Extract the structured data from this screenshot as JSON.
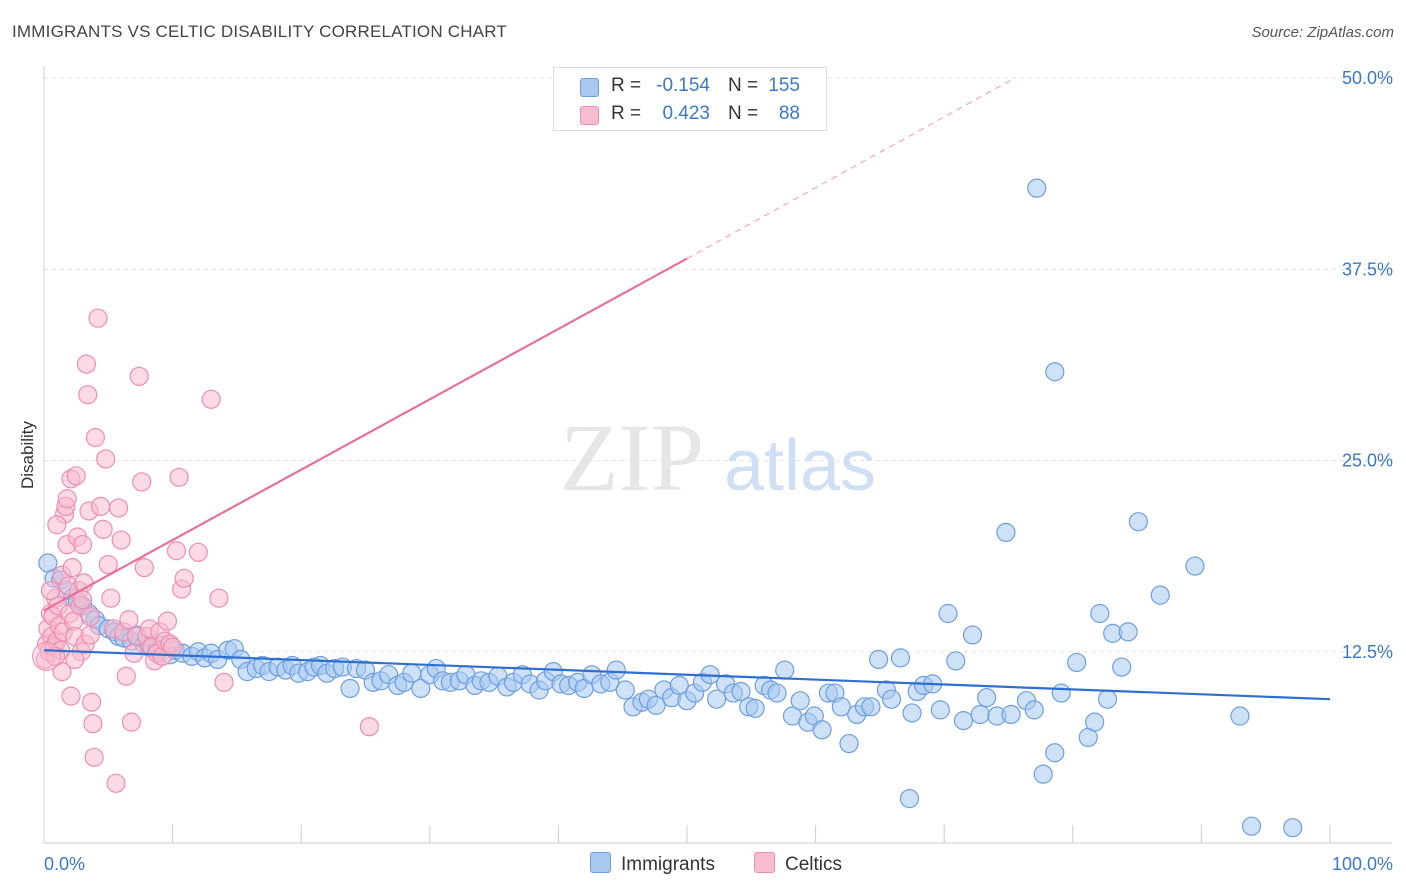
{
  "title": "IMMIGRANTS VS CELTIC DISABILITY CORRELATION CHART",
  "source": "Source: ZipAtlas.com",
  "watermark": {
    "zip": "ZIP",
    "atlas": "atlas"
  },
  "legend": {
    "rows": [
      {
        "r_label": "R =",
        "r_value": "-0.154",
        "n_label": "N =",
        "n_value": "155",
        "color": "#a8c8f0",
        "border": "#6d9fe0"
      },
      {
        "r_label": "R =",
        "r_value": "0.423",
        "n_label": "N =",
        "n_value": "88",
        "color": "#f8bcd0",
        "border": "#ee8eae"
      }
    ]
  },
  "bottom_legend": [
    {
      "label": "Immigrants",
      "color": "#a8c8f0",
      "border": "#6d9fe0"
    },
    {
      "label": "Celtics",
      "color": "#f8bcd0",
      "border": "#ee8eae"
    }
  ],
  "chart_data": {
    "type": "scatter",
    "title": "IMMIGRANTS VS CELTIC DISABILITY CORRELATION CHART",
    "xlabel": "",
    "ylabel": "Disability",
    "xlim": [
      0,
      100
    ],
    "ylim": [
      0,
      50
    ],
    "x_tick_labels": [
      "0.0%",
      "100.0%"
    ],
    "y_ticks": [
      12.5,
      25.0,
      37.5,
      50.0
    ],
    "y_tick_labels": [
      "12.5%",
      "25.0%",
      "37.5%",
      "50.0%"
    ],
    "grid": true,
    "series": [
      {
        "name": "Immigrants",
        "color": "#6d9fe0",
        "fill": "#a8c8f0",
        "line_color": "#2f6fcf",
        "trend": {
          "x": [
            0,
            100
          ],
          "y": [
            12.6,
            9.4
          ],
          "style": "solid"
        },
        "points": [
          [
            0.3,
            18.3
          ],
          [
            0.8,
            17.3
          ],
          [
            1.3,
            17.2
          ],
          [
            1.8,
            16.5
          ],
          [
            2.2,
            16.0
          ],
          [
            2.6,
            15.8
          ],
          [
            3.0,
            15.5
          ],
          [
            3.5,
            15.0
          ],
          [
            4.0,
            14.6
          ],
          [
            4.3,
            14.2
          ],
          [
            5.0,
            14.0
          ],
          [
            5.5,
            13.8
          ],
          [
            5.8,
            13.5
          ],
          [
            6.2,
            13.4
          ],
          [
            6.8,
            13.2
          ],
          [
            7.2,
            13.6
          ],
          [
            7.8,
            13.0
          ],
          [
            8.2,
            12.8
          ],
          [
            8.8,
            12.6
          ],
          [
            9.2,
            12.9
          ],
          [
            9.8,
            12.3
          ],
          [
            10.2,
            12.6
          ],
          [
            10.8,
            12.4
          ],
          [
            11.5,
            12.2
          ],
          [
            12.0,
            12.5
          ],
          [
            12.5,
            12.1
          ],
          [
            13.0,
            12.4
          ],
          [
            13.5,
            12.0
          ],
          [
            14.3,
            12.6
          ],
          [
            14.8,
            12.7
          ],
          [
            15.3,
            12.0
          ],
          [
            15.8,
            11.2
          ],
          [
            16.5,
            11.4
          ],
          [
            17.0,
            11.6
          ],
          [
            17.5,
            11.2
          ],
          [
            18.2,
            11.5
          ],
          [
            18.8,
            11.3
          ],
          [
            19.3,
            11.6
          ],
          [
            19.8,
            11.1
          ],
          [
            20.5,
            11.2
          ],
          [
            21.0,
            11.5
          ],
          [
            21.5,
            11.6
          ],
          [
            22.0,
            11.1
          ],
          [
            22.6,
            11.4
          ],
          [
            23.2,
            11.5
          ],
          [
            23.8,
            10.1
          ],
          [
            24.3,
            11.4
          ],
          [
            25.0,
            11.3
          ],
          [
            25.6,
            10.5
          ],
          [
            26.2,
            10.6
          ],
          [
            26.8,
            11.0
          ],
          [
            27.5,
            10.3
          ],
          [
            28.0,
            10.5
          ],
          [
            28.6,
            11.1
          ],
          [
            29.3,
            10.1
          ],
          [
            30.0,
            11.0
          ],
          [
            30.5,
            11.4
          ],
          [
            31.0,
            10.6
          ],
          [
            31.6,
            10.5
          ],
          [
            32.3,
            10.6
          ],
          [
            32.8,
            11.0
          ],
          [
            33.5,
            10.3
          ],
          [
            34.0,
            10.6
          ],
          [
            34.6,
            10.5
          ],
          [
            35.3,
            10.9
          ],
          [
            36.0,
            10.2
          ],
          [
            36.5,
            10.5
          ],
          [
            37.2,
            11.0
          ],
          [
            37.8,
            10.4
          ],
          [
            38.5,
            10.0
          ],
          [
            39.0,
            10.6
          ],
          [
            39.6,
            11.2
          ],
          [
            40.2,
            10.4
          ],
          [
            40.8,
            10.3
          ],
          [
            41.5,
            10.5
          ],
          [
            42.0,
            10.1
          ],
          [
            42.6,
            11.0
          ],
          [
            43.3,
            10.4
          ],
          [
            44.0,
            10.5
          ],
          [
            44.5,
            11.3
          ],
          [
            45.2,
            10.0
          ],
          [
            45.8,
            8.9
          ],
          [
            46.5,
            9.2
          ],
          [
            47.0,
            9.4
          ],
          [
            47.6,
            9.0
          ],
          [
            48.2,
            10.0
          ],
          [
            48.8,
            9.5
          ],
          [
            49.4,
            10.3
          ],
          [
            50.0,
            9.3
          ],
          [
            50.6,
            9.8
          ],
          [
            51.2,
            10.5
          ],
          [
            51.8,
            11.0
          ],
          [
            52.3,
            9.4
          ],
          [
            53.0,
            10.4
          ],
          [
            53.6,
            9.8
          ],
          [
            54.2,
            9.9
          ],
          [
            54.8,
            8.9
          ],
          [
            55.3,
            8.8
          ],
          [
            56.0,
            10.3
          ],
          [
            56.5,
            10.0
          ],
          [
            57.0,
            9.8
          ],
          [
            57.6,
            11.3
          ],
          [
            58.2,
            8.3
          ],
          [
            58.8,
            9.3
          ],
          [
            59.4,
            7.9
          ],
          [
            59.9,
            8.3
          ],
          [
            60.5,
            7.4
          ],
          [
            61.0,
            9.8
          ],
          [
            61.5,
            9.8
          ],
          [
            62.0,
            8.9
          ],
          [
            62.6,
            6.5
          ],
          [
            63.2,
            8.4
          ],
          [
            63.8,
            8.9
          ],
          [
            64.3,
            8.9
          ],
          [
            64.9,
            12.0
          ],
          [
            65.5,
            10.0
          ],
          [
            65.9,
            9.4
          ],
          [
            66.6,
            12.1
          ],
          [
            67.3,
            2.9
          ],
          [
            67.5,
            8.5
          ],
          [
            67.9,
            9.9
          ],
          [
            68.4,
            10.3
          ],
          [
            69.1,
            10.4
          ],
          [
            69.7,
            8.7
          ],
          [
            70.3,
            15.0
          ],
          [
            70.9,
            11.9
          ],
          [
            71.5,
            8.0
          ],
          [
            72.2,
            13.6
          ],
          [
            72.8,
            8.4
          ],
          [
            73.3,
            9.5
          ],
          [
            74.1,
            8.3
          ],
          [
            74.8,
            20.3
          ],
          [
            75.2,
            8.4
          ],
          [
            76.4,
            9.3
          ],
          [
            77.0,
            8.7
          ],
          [
            77.7,
            4.5
          ],
          [
            78.6,
            5.9
          ],
          [
            79.1,
            9.8
          ],
          [
            80.3,
            11.8
          ],
          [
            81.2,
            6.9
          ],
          [
            81.7,
            7.9
          ],
          [
            82.1,
            15.0
          ],
          [
            82.7,
            9.4
          ],
          [
            83.1,
            13.7
          ],
          [
            83.8,
            11.5
          ],
          [
            84.3,
            13.8
          ],
          [
            85.1,
            21.0
          ],
          [
            86.8,
            16.2
          ],
          [
            89.5,
            18.1
          ],
          [
            93.0,
            8.3
          ],
          [
            93.9,
            1.1
          ],
          [
            97.1,
            1.0
          ],
          [
            77.2,
            42.8
          ],
          [
            78.6,
            30.8
          ],
          [
            0.8,
            12.9
          ]
        ]
      },
      {
        "name": "Celtics",
        "color": "#ee8eae",
        "fill": "#f8bcd0",
        "line_color": "#e8709a",
        "trend": {
          "x": [
            0,
            50
          ],
          "y": [
            15.2,
            38.2
          ],
          "style": "solid"
        },
        "trend_extension": {
          "x": [
            50,
            75.5
          ],
          "y": [
            38.2,
            50.0
          ],
          "style": "dashed"
        },
        "points": [
          [
            0.1,
            12.0
          ],
          [
            0.2,
            13.0
          ],
          [
            0.3,
            14.0
          ],
          [
            0.4,
            12.5
          ],
          [
            0.5,
            15.0
          ],
          [
            0.6,
            13.5
          ],
          [
            0.7,
            14.8
          ],
          [
            0.8,
            12.8
          ],
          [
            0.9,
            16.0
          ],
          [
            1.0,
            13.2
          ],
          [
            1.1,
            15.5
          ],
          [
            1.2,
            14.2
          ],
          [
            1.3,
            12.6
          ],
          [
            1.4,
            17.5
          ],
          [
            1.5,
            13.8
          ],
          [
            1.6,
            21.5
          ],
          [
            1.7,
            22.0
          ],
          [
            1.8,
            19.5
          ],
          [
            1.9,
            16.8
          ],
          [
            2.0,
            15.0
          ],
          [
            2.1,
            23.8
          ],
          [
            2.2,
            18.0
          ],
          [
            2.3,
            14.5
          ],
          [
            2.4,
            13.5
          ],
          [
            2.5,
            24.0
          ],
          [
            2.6,
            20.0
          ],
          [
            2.7,
            16.5
          ],
          [
            2.8,
            15.5
          ],
          [
            2.9,
            12.5
          ],
          [
            3.0,
            19.5
          ],
          [
            3.1,
            17.0
          ],
          [
            3.2,
            13.0
          ],
          [
            3.3,
            31.3
          ],
          [
            3.4,
            29.3
          ],
          [
            3.5,
            21.7
          ],
          [
            3.6,
            14.8
          ],
          [
            3.7,
            9.2
          ],
          [
            3.8,
            7.8
          ],
          [
            3.9,
            5.6
          ],
          [
            4.0,
            26.5
          ],
          [
            4.2,
            34.3
          ],
          [
            4.4,
            22.0
          ],
          [
            4.6,
            20.5
          ],
          [
            4.8,
            25.1
          ],
          [
            5.0,
            18.2
          ],
          [
            5.2,
            16.0
          ],
          [
            5.4,
            14.0
          ],
          [
            5.6,
            3.9
          ],
          [
            5.8,
            21.9
          ],
          [
            6.0,
            19.8
          ],
          [
            6.2,
            13.8
          ],
          [
            6.4,
            10.9
          ],
          [
            6.6,
            14.6
          ],
          [
            6.8,
            7.9
          ],
          [
            7.0,
            12.4
          ],
          [
            7.2,
            13.5
          ],
          [
            7.4,
            30.5
          ],
          [
            7.6,
            23.6
          ],
          [
            7.8,
            18.0
          ],
          [
            8.0,
            13.5
          ],
          [
            8.2,
            14.0
          ],
          [
            8.4,
            12.8
          ],
          [
            8.6,
            11.9
          ],
          [
            8.8,
            12.4
          ],
          [
            9.0,
            13.8
          ],
          [
            9.2,
            12.2
          ],
          [
            9.4,
            13.2
          ],
          [
            9.6,
            14.5
          ],
          [
            9.8,
            13.0
          ],
          [
            10.0,
            12.8
          ],
          [
            10.3,
            19.1
          ],
          [
            10.5,
            23.9
          ],
          [
            10.7,
            16.6
          ],
          [
            10.9,
            17.3
          ],
          [
            12.0,
            19.0
          ],
          [
            13.0,
            29.0
          ],
          [
            14.0,
            10.5
          ],
          [
            13.6,
            16.0
          ],
          [
            25.3,
            7.6
          ],
          [
            2.1,
            9.6
          ],
          [
            1.4,
            11.2
          ],
          [
            0.9,
            12.2
          ],
          [
            3.6,
            13.6
          ],
          [
            2.4,
            12.0
          ],
          [
            0.5,
            16.5
          ],
          [
            1.0,
            20.8
          ],
          [
            1.8,
            22.5
          ],
          [
            3.0,
            15.9
          ]
        ]
      }
    ]
  }
}
